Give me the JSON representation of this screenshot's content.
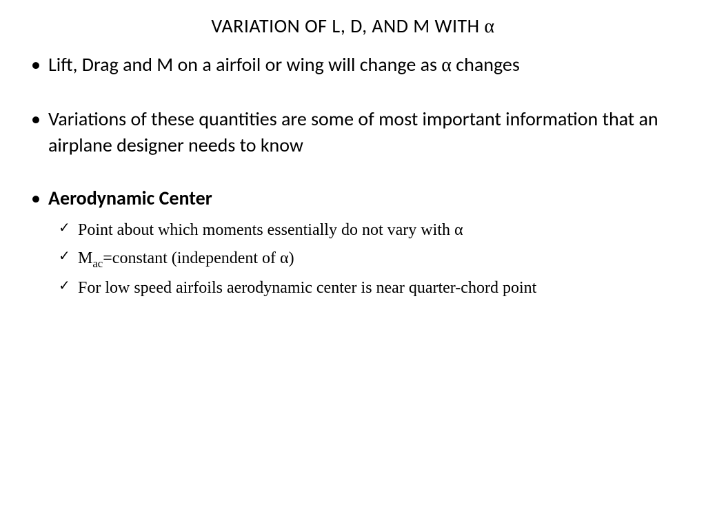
{
  "title_prefix": "VARIATION OF L, D, AND M WITH ",
  "alpha": "α",
  "bullets": [
    {
      "text_before": "Lift, Drag and M on a airfoil or wing will change as ",
      "text_after": " changes",
      "has_alpha": true
    },
    {
      "text_before": "Variations of these quantities are some of most important information that an airplane designer needs to know",
      "text_after": "",
      "has_alpha": false
    },
    {
      "text_before": "Aerodynamic Center",
      "text_after": "",
      "has_alpha": false,
      "bold": true
    }
  ],
  "sub_bullets": [
    {
      "pre": "Point about which moments essentially do not vary with ",
      "alpha": "α",
      "post": ""
    },
    {
      "m_label": "M",
      "m_sub": "ac",
      "mid": "=constant (independent of ",
      "alpha": "α",
      "post": ")"
    },
    {
      "pre": "For low speed airfoils aerodynamic center is near quarter-chord point",
      "alpha": "",
      "post": ""
    }
  ],
  "colors": {
    "text": "#000000",
    "background": "#ffffff"
  },
  "fonts": {
    "main": "Calibri",
    "sub": "Times New Roman",
    "title_size": 28,
    "bullet_size": 28,
    "sub_size": 24
  }
}
